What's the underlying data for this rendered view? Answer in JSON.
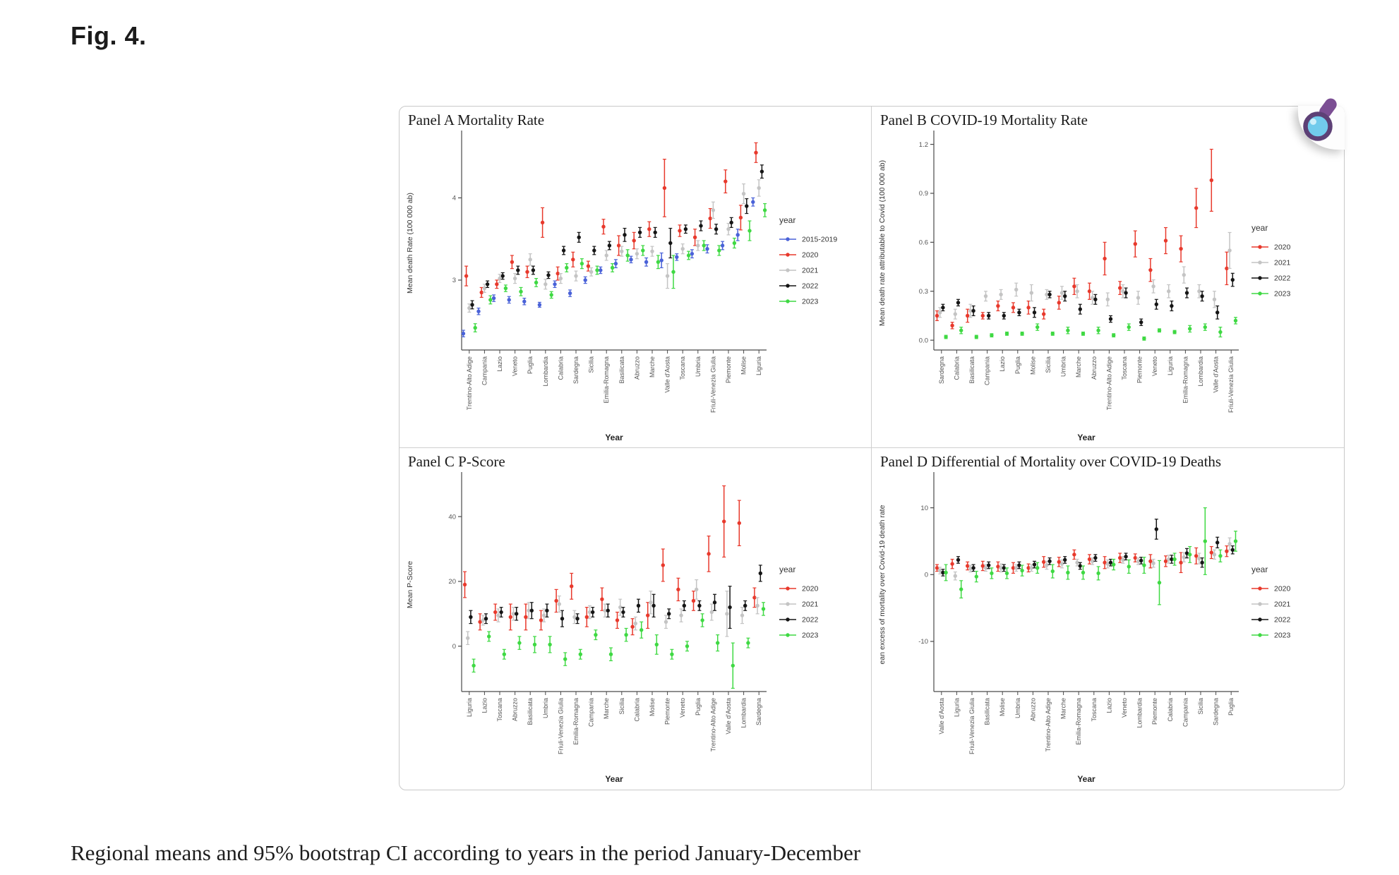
{
  "page": {
    "figure_label": "Fig. 4.",
    "caption": "Regional means and 95% bootstrap CI according to years in the period January-December"
  },
  "icons": {
    "zoom_overlay": "magnifier-icon"
  },
  "palette": {
    "2015-2019": "#4a62d8",
    "2020": "#e8392c",
    "2021": "#c4c4c4",
    "2022": "#151515",
    "2023": "#3fd943"
  },
  "chart_data": [
    {
      "id": "panel-a",
      "type": "scatter",
      "title": "Panel A Mortality Rate",
      "ylabel": "Mean death Rate (100 000 ab)",
      "xlabel": "Year",
      "legend_title": "year",
      "legend_position": "right",
      "grid": false,
      "ylim": [
        2.15,
        4.75
      ],
      "yticks": [
        3,
        4
      ],
      "ytick_labels": [
        "3",
        "4"
      ],
      "categories": [
        "Trentino-Alto Adige",
        "Campania",
        "Lazio",
        "Veneto",
        "Puglia",
        "Lombardia",
        "Calabria",
        "Sardegna",
        "Sicilia",
        "Emilia-Romagna",
        "Basilicata",
        "Abruzzo",
        "Marche",
        "Valle d'Aosta",
        "Toscana",
        "Umbria",
        "Friuli-Venezia Giulia",
        "Piemonte",
        "Molise",
        "Liguria"
      ],
      "series": [
        {
          "name": "2015-2019",
          "color": "#4a62d8",
          "means": [
            2.35,
            2.62,
            2.78,
            2.76,
            2.74,
            2.7,
            2.95,
            2.84,
            3.0,
            3.12,
            3.2,
            3.25,
            3.22,
            3.24,
            3.28,
            3.32,
            3.38,
            3.42,
            3.55,
            3.95
          ],
          "errs": [
            0.04,
            0.04,
            0.04,
            0.04,
            0.04,
            0.03,
            0.04,
            0.04,
            0.04,
            0.04,
            0.05,
            0.04,
            0.05,
            0.09,
            0.04,
            0.05,
            0.05,
            0.05,
            0.07,
            0.05
          ]
        },
        {
          "name": "2020",
          "color": "#e8392c",
          "means": [
            3.05,
            2.85,
            2.95,
            3.22,
            3.1,
            3.7,
            3.08,
            3.25,
            3.17,
            3.65,
            3.42,
            3.48,
            3.62,
            4.12,
            3.6,
            3.52,
            3.75,
            4.2,
            3.76,
            4.55
          ],
          "errs": [
            0.12,
            0.06,
            0.05,
            0.08,
            0.07,
            0.18,
            0.08,
            0.09,
            0.06,
            0.09,
            0.12,
            0.1,
            0.09,
            0.35,
            0.07,
            0.1,
            0.12,
            0.14,
            0.15,
            0.12
          ]
        },
        {
          "name": "2021",
          "color": "#c4c4c4",
          "means": [
            2.66,
            2.9,
            3.02,
            3.02,
            3.25,
            2.95,
            3.02,
            3.05,
            3.1,
            3.3,
            3.35,
            3.32,
            3.35,
            3.05,
            3.38,
            3.42,
            3.85,
            3.62,
            4.05,
            4.12
          ],
          "errs": [
            0.05,
            0.05,
            0.05,
            0.06,
            0.07,
            0.06,
            0.06,
            0.06,
            0.05,
            0.06,
            0.06,
            0.06,
            0.06,
            0.15,
            0.06,
            0.06,
            0.1,
            0.07,
            0.12,
            0.1
          ]
        },
        {
          "name": "2022",
          "color": "#151515",
          "means": [
            2.7,
            2.95,
            3.05,
            3.12,
            3.12,
            3.06,
            3.36,
            3.52,
            3.36,
            3.42,
            3.55,
            3.58,
            3.58,
            3.45,
            3.62,
            3.66,
            3.62,
            3.7,
            3.9,
            4.32
          ],
          "errs": [
            0.05,
            0.04,
            0.04,
            0.05,
            0.05,
            0.04,
            0.05,
            0.06,
            0.05,
            0.05,
            0.08,
            0.06,
            0.06,
            0.18,
            0.05,
            0.06,
            0.06,
            0.06,
            0.09,
            0.08
          ]
        },
        {
          "name": "2023",
          "color": "#3fd943",
          "means": [
            2.42,
            2.76,
            2.9,
            2.86,
            2.97,
            2.82,
            3.15,
            3.2,
            3.12,
            3.15,
            3.3,
            3.36,
            3.22,
            3.1,
            3.3,
            3.42,
            3.36,
            3.45,
            3.6,
            3.85
          ],
          "errs": [
            0.05,
            0.05,
            0.04,
            0.05,
            0.05,
            0.04,
            0.05,
            0.06,
            0.05,
            0.05,
            0.07,
            0.06,
            0.08,
            0.2,
            0.05,
            0.06,
            0.06,
            0.06,
            0.12,
            0.08
          ]
        }
      ]
    },
    {
      "id": "panel-b",
      "type": "scatter",
      "title": "Panel B COVID-19 Mortality Rate",
      "ylabel": "Mean death rate attributable to Covid (100 000 ab)",
      "xlabel": "Year",
      "legend_title": "year",
      "legend_position": "right",
      "grid": false,
      "ylim": [
        -0.06,
        1.25
      ],
      "yticks": [
        0,
        0.3,
        0.6,
        0.9,
        1.2
      ],
      "ytick_labels": [
        "0.0",
        "0.3",
        "0.6",
        "0.9",
        "1.2"
      ],
      "categories": [
        "Sardegna",
        "Calabria",
        "Basilicata",
        "Campania",
        "Lazio",
        "Puglia",
        "Molise",
        "Sicilia",
        "Umbria",
        "Marche",
        "Abruzzo",
        "Trentino-Alto Adige",
        "Toscana",
        "Piemonte",
        "Veneto",
        "Liguria",
        "Emilia-Romagna",
        "Lombardia",
        "Valle d'Aosta",
        "Friuli-Venezia Giulia"
      ],
      "series": [
        {
          "name": "2020",
          "color": "#e8392c",
          "means": [
            0.15,
            0.09,
            0.15,
            0.15,
            0.21,
            0.2,
            0.2,
            0.16,
            0.23,
            0.33,
            0.3,
            0.5,
            0.32,
            0.59,
            0.43,
            0.61,
            0.56,
            0.81,
            0.98,
            0.44
          ],
          "errs": [
            0.03,
            0.02,
            0.04,
            0.02,
            0.03,
            0.03,
            0.04,
            0.03,
            0.04,
            0.05,
            0.05,
            0.1,
            0.04,
            0.08,
            0.07,
            0.08,
            0.08,
            0.12,
            0.19,
            0.1
          ]
        },
        {
          "name": "2021",
          "color": "#c4c4c4",
          "means": [
            0.17,
            0.16,
            0.18,
            0.27,
            0.28,
            0.31,
            0.29,
            0.28,
            0.29,
            0.3,
            0.26,
            0.25,
            0.3,
            0.26,
            0.33,
            0.3,
            0.4,
            0.3,
            0.25,
            0.55
          ],
          "errs": [
            0.03,
            0.03,
            0.04,
            0.03,
            0.03,
            0.04,
            0.05,
            0.03,
            0.04,
            0.04,
            0.04,
            0.04,
            0.04,
            0.04,
            0.04,
            0.04,
            0.05,
            0.04,
            0.05,
            0.11
          ]
        },
        {
          "name": "2022",
          "color": "#151515",
          "means": [
            0.2,
            0.23,
            0.18,
            0.15,
            0.15,
            0.17,
            0.17,
            0.28,
            0.27,
            0.19,
            0.25,
            0.13,
            0.29,
            0.11,
            0.22,
            0.21,
            0.29,
            0.27,
            0.17,
            0.37
          ],
          "errs": [
            0.02,
            0.02,
            0.03,
            0.02,
            0.02,
            0.02,
            0.03,
            0.02,
            0.03,
            0.03,
            0.03,
            0.02,
            0.03,
            0.02,
            0.03,
            0.03,
            0.03,
            0.03,
            0.04,
            0.04
          ]
        },
        {
          "name": "2023",
          "color": "#3fd943",
          "means": [
            0.02,
            0.06,
            0.02,
            0.03,
            0.04,
            0.04,
            0.08,
            0.04,
            0.06,
            0.04,
            0.06,
            0.03,
            0.08,
            0.01,
            0.06,
            0.05,
            0.07,
            0.08,
            0.05,
            0.12
          ],
          "errs": [
            0.01,
            0.02,
            0.01,
            0.01,
            0.01,
            0.01,
            0.02,
            0.01,
            0.02,
            0.01,
            0.02,
            0.01,
            0.02,
            0.01,
            0.01,
            0.01,
            0.02,
            0.02,
            0.03,
            0.02
          ]
        }
      ]
    },
    {
      "id": "panel-c",
      "type": "scatter",
      "title": "Panel C P-Score",
      "ylabel": "Mean P-Score",
      "xlabel": "Year",
      "legend_title": "year",
      "legend_position": "right",
      "grid": false,
      "ylim": [
        -14,
        52
      ],
      "yticks": [
        0,
        20,
        40
      ],
      "ytick_labels": [
        "0",
        "20",
        "40"
      ],
      "categories": [
        "Liguria",
        "Lazio",
        "Toscana",
        "Abruzzo",
        "Basilicata",
        "Umbria",
        "Friuli-Venezia Giulia",
        "Emilia-Romagna",
        "Campania",
        "Marche",
        "Sicilia",
        "Calabria",
        "Molise",
        "Piemonte",
        "Veneto",
        "Puglia",
        "Trentino-Alto Adige",
        "Valle d'Aosta",
        "Lombardia",
        "Sardegna"
      ],
      "series": [
        {
          "name": "2020",
          "color": "#e8392c",
          "means": [
            19,
            7.5,
            10.5,
            9,
            9,
            8,
            14,
            18.5,
            9,
            14.5,
            8,
            6,
            9.5,
            25,
            17.5,
            14,
            28.5,
            38.5,
            38,
            15
          ],
          "errs": [
            4,
            2.5,
            2.5,
            4,
            4,
            3,
            3.5,
            4,
            3,
            3.5,
            2.5,
            2.5,
            4,
            5,
            3.5,
            3,
            5.5,
            11,
            7,
            3
          ]
        },
        {
          "name": "2021",
          "color": "#c4c4c4",
          "means": [
            2.5,
            8,
            9.5,
            10,
            11,
            9.5,
            13,
            9,
            10.5,
            11,
            12,
            7,
            13.5,
            7.5,
            9.5,
            17.5,
            10.5,
            10,
            9.5,
            12.5
          ],
          "errs": [
            2,
            1.5,
            2,
            2,
            2.5,
            2,
            2.5,
            2,
            2,
            2,
            2.5,
            2,
            3.5,
            2,
            2,
            3,
            2.5,
            7,
            2.5,
            2.5
          ]
        },
        {
          "name": "2022",
          "color": "#151515",
          "means": [
            9,
            8.5,
            10.5,
            10,
            11,
            11,
            8.5,
            8.5,
            10.5,
            11,
            10.5,
            12.5,
            12.5,
            10,
            12.5,
            12.5,
            13.5,
            12,
            12.5,
            22.5
          ],
          "errs": [
            2,
            1.5,
            1.5,
            2,
            2.5,
            2,
            2.5,
            1.5,
            1.5,
            2,
            1.5,
            2,
            3.5,
            1.5,
            1.5,
            1.5,
            2.5,
            6.5,
            1.5,
            2.5
          ]
        },
        {
          "name": "2023",
          "color": "#3fd943",
          "means": [
            -6,
            3,
            -2.5,
            1,
            0.5,
            0.5,
            -4,
            -2.5,
            3.5,
            -2.5,
            3.5,
            5,
            0.5,
            -2.5,
            0,
            8,
            1,
            -6,
            1,
            11.5
          ],
          "errs": [
            2,
            1.5,
            1.5,
            2,
            2.5,
            2.5,
            2,
            1.5,
            1.5,
            2,
            2,
            2.5,
            3,
            1.5,
            1.5,
            2,
            2.5,
            7,
            1.5,
            2
          ]
        }
      ]
    },
    {
      "id": "panel-d",
      "type": "scatter",
      "title": "Panel D Differential of Mortality over COVID-19 Deaths",
      "ylabel": "ean excess of mortality over Covid-19 death rate",
      "xlabel": "Year",
      "legend_title": "year",
      "legend_position": "right",
      "grid": false,
      "ylim": [
        -17.5,
        14.5
      ],
      "yticks": [
        -10,
        0,
        10
      ],
      "ytick_labels": [
        "-10",
        "0",
        "10"
      ],
      "categories": [
        "Valle d'Aosta",
        "Liguria",
        "Friuli-Venezia Giulia",
        "Basilicata",
        "Molise",
        "Umbria",
        "Abruzzo",
        "Trentino-Alto Adige",
        "Marche",
        "Emilia-Romagna",
        "Toscana",
        "Lazio",
        "Veneto",
        "Lombardia",
        "Piemonte",
        "Calabria",
        "Campania",
        "Sicilia",
        "Sardegna",
        "Puglia"
      ],
      "series": [
        {
          "name": "2020",
          "color": "#e8392c",
          "means": [
            1.0,
            1.6,
            1.3,
            1.3,
            1.2,
            1.0,
            1.0,
            1.9,
            1.9,
            3.0,
            2.3,
            1.8,
            2.5,
            2.5,
            2.0,
            2.0,
            1.8,
            2.8,
            3.3,
            3.5
          ],
          "errs": [
            0.5,
            0.7,
            0.6,
            0.7,
            0.7,
            0.8,
            0.6,
            0.8,
            0.7,
            0.7,
            0.7,
            0.9,
            0.7,
            0.6,
            1.0,
            0.8,
            1.5,
            1.2,
            0.9,
            0.8
          ]
        },
        {
          "name": "2021",
          "color": "#c4c4c4",
          "means": [
            0.6,
            -0.2,
            0.9,
            1.0,
            1.0,
            1.0,
            1.0,
            1.4,
            1.6,
            1.8,
            2.0,
            1.6,
            2.2,
            2.0,
            1.7,
            2.3,
            2.6,
            2.4,
            3.0,
            4.6
          ],
          "errs": [
            0.5,
            0.6,
            0.5,
            0.5,
            0.6,
            0.5,
            0.5,
            0.6,
            0.6,
            0.5,
            0.5,
            0.6,
            0.5,
            0.5,
            0.6,
            0.6,
            0.7,
            0.8,
            0.7,
            0.9
          ]
        },
        {
          "name": "2022",
          "color": "#151515",
          "means": [
            0.3,
            2.2,
            1.0,
            1.4,
            1.0,
            1.4,
            1.5,
            2.0,
            2.2,
            1.3,
            2.5,
            1.8,
            2.7,
            2.1,
            6.8,
            2.3,
            3.2,
            1.8,
            4.8,
            3.7
          ],
          "errs": [
            0.5,
            0.5,
            0.5,
            0.5,
            0.5,
            0.5,
            0.5,
            0.5,
            0.5,
            0.5,
            0.5,
            0.5,
            0.5,
            0.5,
            1.5,
            0.6,
            0.7,
            0.7,
            0.8,
            0.6
          ]
        },
        {
          "name": "2023",
          "color": "#3fd943",
          "means": [
            0.3,
            -2.2,
            -0.3,
            0.2,
            0.2,
            0.6,
            1.0,
            0.5,
            0.3,
            0.3,
            0.2,
            1.5,
            1.2,
            1.4,
            -1.2,
            2.3,
            3.0,
            5.0,
            2.8,
            5.0
          ],
          "errs": [
            1.2,
            1.3,
            0.8,
            0.8,
            0.8,
            0.8,
            0.8,
            1.0,
            1.0,
            1.0,
            1.0,
            0.8,
            1.0,
            1.2,
            3.3,
            0.9,
            1.2,
            5.0,
            0.9,
            1.5
          ]
        }
      ]
    }
  ]
}
